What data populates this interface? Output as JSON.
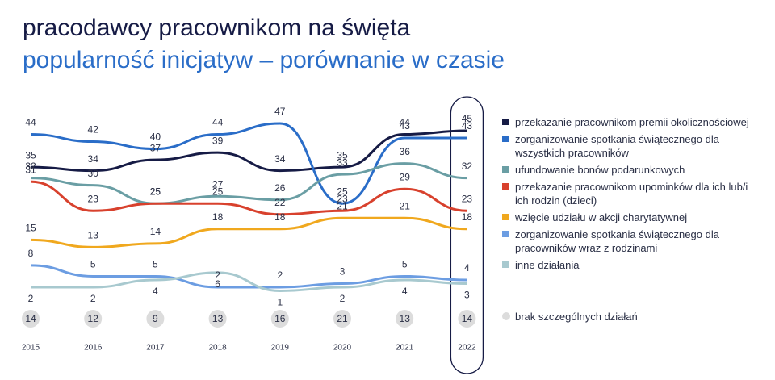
{
  "chart_data": {
    "type": "line",
    "title": "pracodawcy pracownikom na święta",
    "subtitle": "popularność inicjatyw – porównanie w czasie",
    "categories": [
      "2015",
      "2016",
      "2017",
      "2018",
      "2019",
      "2020",
      "2021",
      "2022"
    ],
    "series": [
      {
        "name": "przekazanie pracownikom premii okolicznościowej",
        "color": "#161b45",
        "values": [
          35,
          34,
          37,
          39,
          34,
          35,
          44,
          45
        ]
      },
      {
        "name": "zorganizowanie spotkania świątecznego dla wszystkich pracowników",
        "color": "#2a6dc8",
        "values": [
          44,
          42,
          40,
          44,
          47,
          25,
          43,
          43
        ]
      },
      {
        "name": "ufundowanie bonów podarunkowych",
        "color": "#6a9ea4",
        "values": [
          32,
          30,
          25,
          27,
          26,
          33,
          36,
          32
        ]
      },
      {
        "name": "przekazanie pracownikom upominków dla ich lub/i ich rodzin (dzieci)",
        "color": "#d8412d",
        "values": [
          31,
          23,
          25,
          25,
          22,
          23,
          29,
          23
        ]
      },
      {
        "name": "wzięcie udziału w akcji charytatywnej",
        "color": "#f0a81e",
        "values": [
          15,
          13,
          14,
          18,
          18,
          21,
          21,
          18
        ]
      },
      {
        "name": "zorganizowanie spotkania świątecznego dla pracowników wraz z rodzinami",
        "color": "#6c9de2",
        "values": [
          8,
          5,
          5,
          2,
          2,
          3,
          5,
          4
        ]
      },
      {
        "name": "inne działania",
        "color": "#a8c9cf",
        "values": [
          2,
          2,
          4,
          6,
          1,
          2,
          4,
          3
        ]
      }
    ],
    "baseline": {
      "name": "brak szczególnych działań",
      "color": "#dcdcdc",
      "values": [
        14,
        12,
        9,
        13,
        16,
        21,
        13,
        14
      ]
    }
  }
}
